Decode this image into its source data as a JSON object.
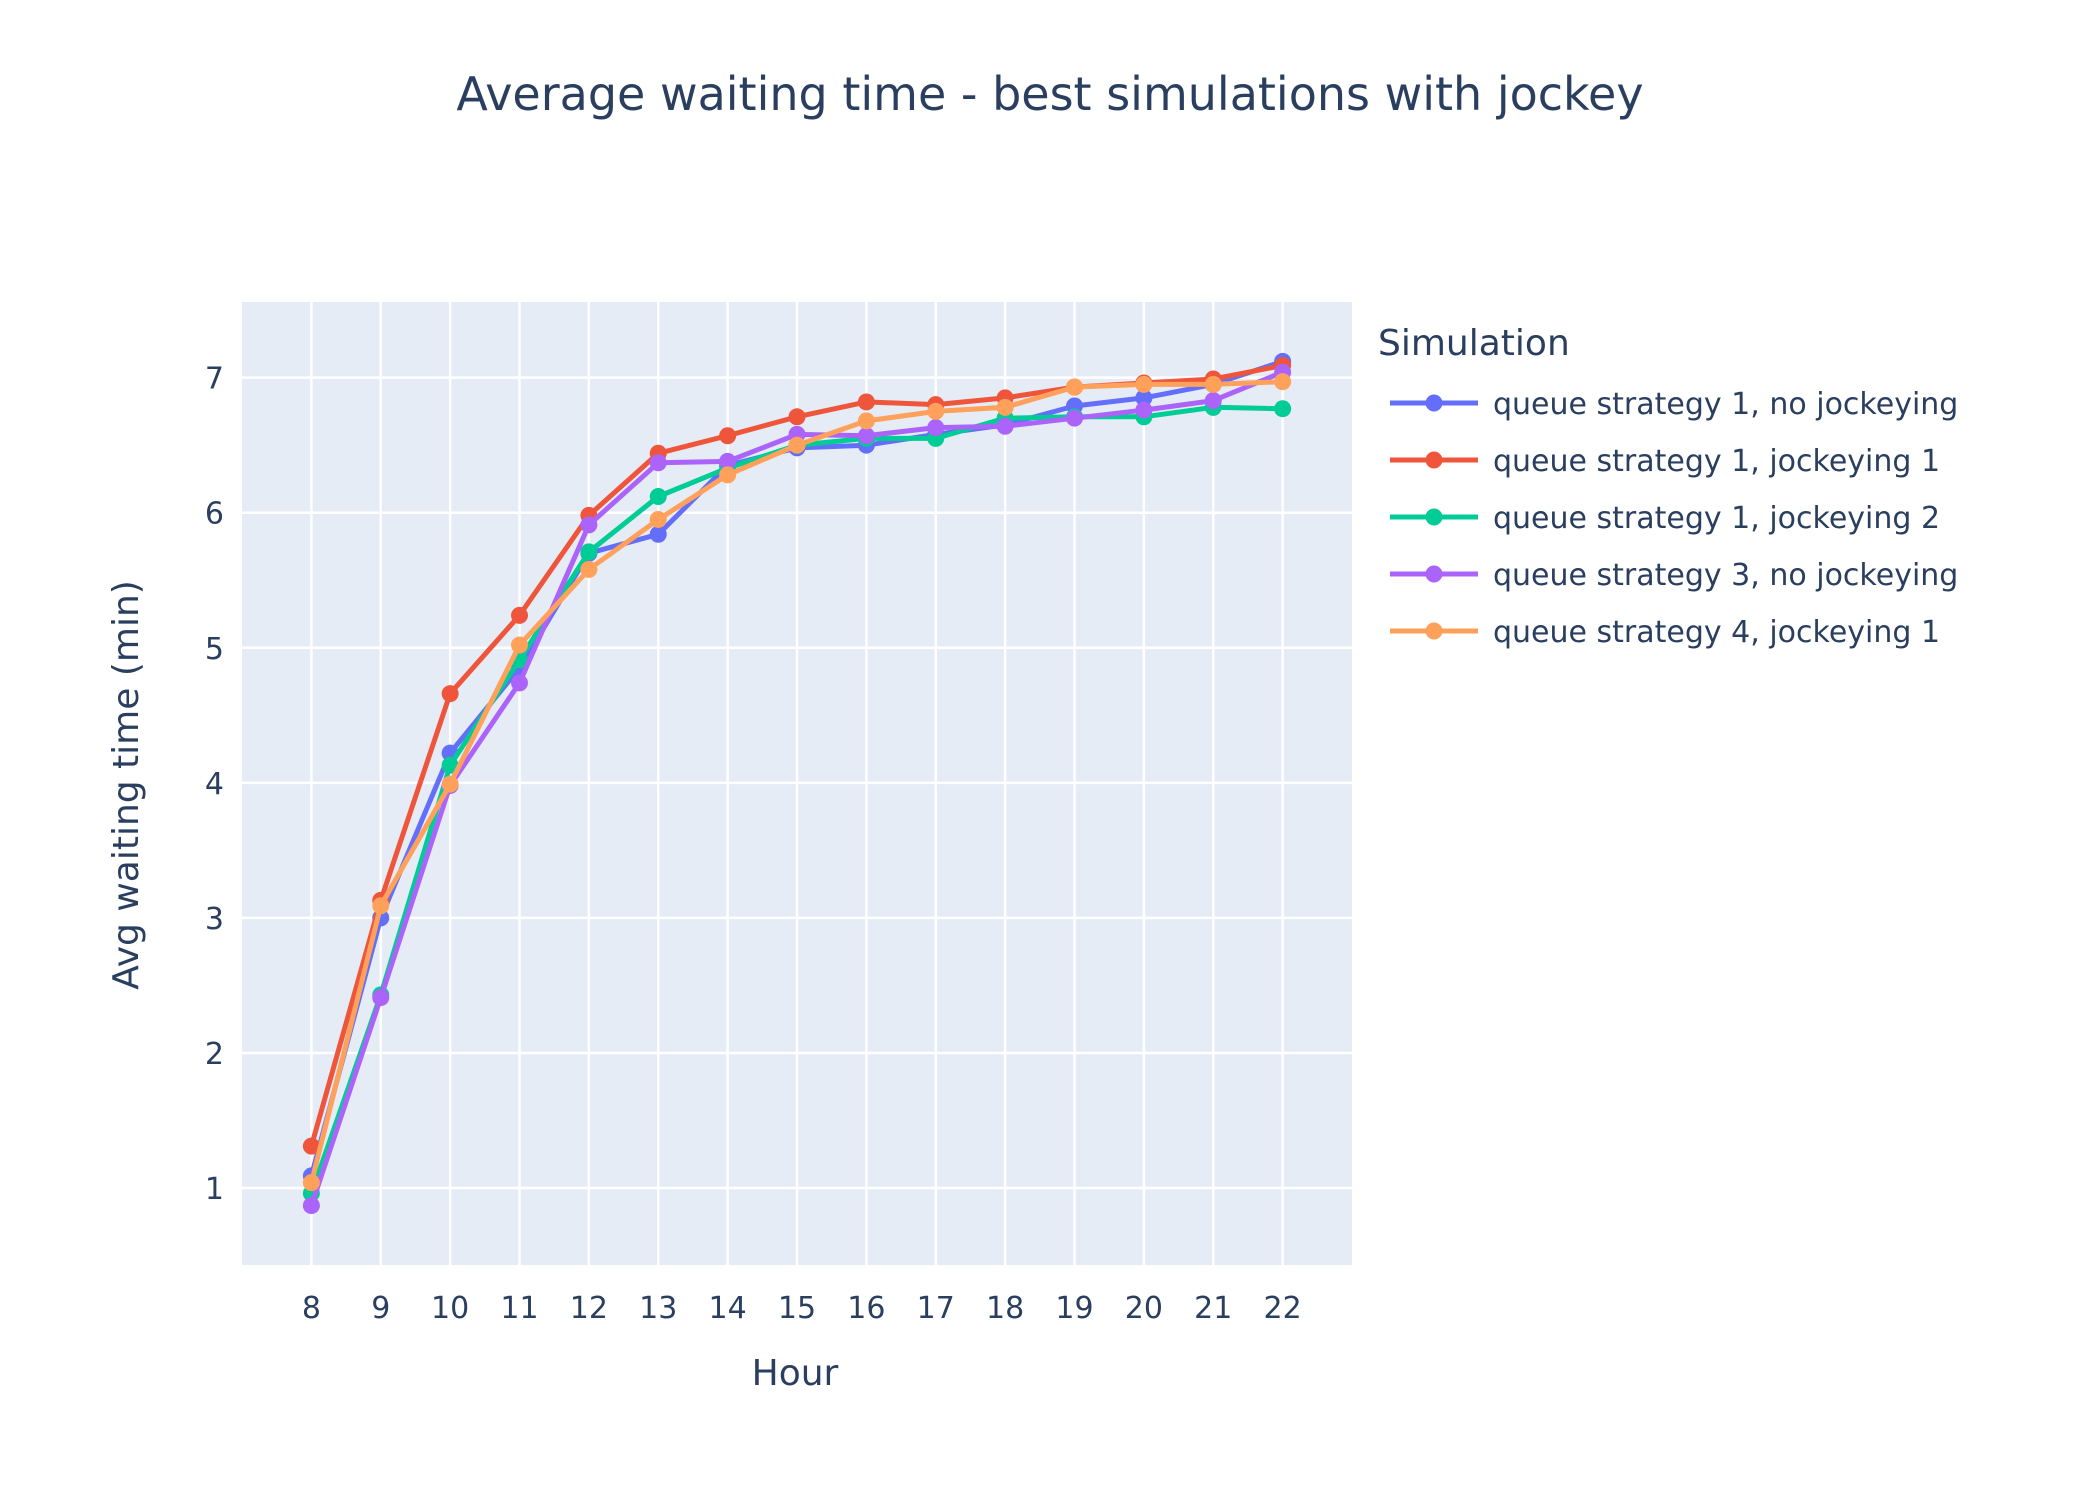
{
  "chart_data": {
    "type": "line",
    "title": "Average waiting time - best simulations with jockey",
    "xlabel": "Hour",
    "ylabel": "Avg waiting time (min)",
    "x": [
      8,
      9,
      10,
      11,
      12,
      13,
      14,
      15,
      16,
      17,
      18,
      19,
      20,
      21,
      22
    ],
    "xlim": [
      7,
      23
    ],
    "ylim": [
      0.43,
      7.56
    ],
    "yticks": [
      1,
      2,
      3,
      4,
      5,
      6,
      7
    ],
    "grid": true,
    "legend": {
      "title": "Simulation",
      "position": "right"
    },
    "series": [
      {
        "name": "queue strategy 1, no jockeying",
        "color": "#636efa",
        "values": [
          1.09,
          3.0,
          4.22,
          4.85,
          5.7,
          5.84,
          6.35,
          6.48,
          6.5,
          6.58,
          6.65,
          6.79,
          6.85,
          6.95,
          7.12
        ]
      },
      {
        "name": "queue strategy 1, jockeying 1",
        "color": "#ef553b",
        "values": [
          1.31,
          3.13,
          4.66,
          5.24,
          5.98,
          6.44,
          6.57,
          6.71,
          6.82,
          6.8,
          6.85,
          6.93,
          6.96,
          6.99,
          7.09
        ]
      },
      {
        "name": "queue strategy 1, jockeying 2",
        "color": "#00cc96",
        "values": [
          0.96,
          2.43,
          4.13,
          4.91,
          5.71,
          6.12,
          6.33,
          6.5,
          6.55,
          6.55,
          6.7,
          6.71,
          6.71,
          6.78,
          6.77
        ]
      },
      {
        "name": "queue strategy 3, no jockeying",
        "color": "#ab63fa",
        "values": [
          0.87,
          2.41,
          3.98,
          4.74,
          5.91,
          6.37,
          6.38,
          6.58,
          6.57,
          6.63,
          6.64,
          6.7,
          6.76,
          6.83,
          7.04
        ]
      },
      {
        "name": "queue strategy 4, jockeying 1",
        "color": "#ffa15a",
        "values": [
          1.04,
          3.09,
          3.99,
          5.02,
          5.58,
          5.95,
          6.28,
          6.5,
          6.68,
          6.75,
          6.78,
          6.93,
          6.95,
          6.95,
          6.97
        ]
      }
    ],
    "colors": {
      "plot_bg": "#e5ecf6",
      "grid": "#ffffff",
      "text": "#2a3f5f"
    }
  }
}
